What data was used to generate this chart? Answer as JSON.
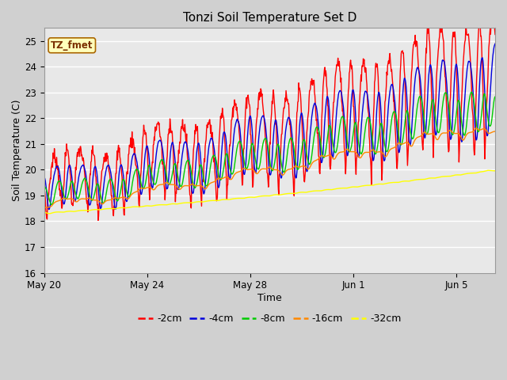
{
  "title": "Tonzi Soil Temperature Set D",
  "xlabel": "Time",
  "ylabel": "Soil Temperature (C)",
  "annotation": "TZ_fmet",
  "ylim": [
    16.0,
    25.5
  ],
  "yticks": [
    16.0,
    17.0,
    18.0,
    19.0,
    20.0,
    21.0,
    22.0,
    23.0,
    24.0,
    25.0
  ],
  "xtick_labels": [
    "May 20",
    "May 24",
    "May 28",
    "Jun 1",
    "Jun 5"
  ],
  "xtick_positions": [
    0,
    4,
    8,
    12,
    16
  ],
  "xlim": [
    0,
    17.5
  ],
  "series_colors": {
    "-2cm": "#ff0000",
    "-4cm": "#0000dd",
    "-8cm": "#00cc00",
    "-16cm": "#ff8800",
    "-32cm": "#ffff00"
  },
  "figsize": [
    6.4,
    4.8
  ],
  "dpi": 100,
  "fig_facecolor": "#d0d0d0",
  "ax_facecolor": "#e8e8e8",
  "grid_color": "#ffffff"
}
